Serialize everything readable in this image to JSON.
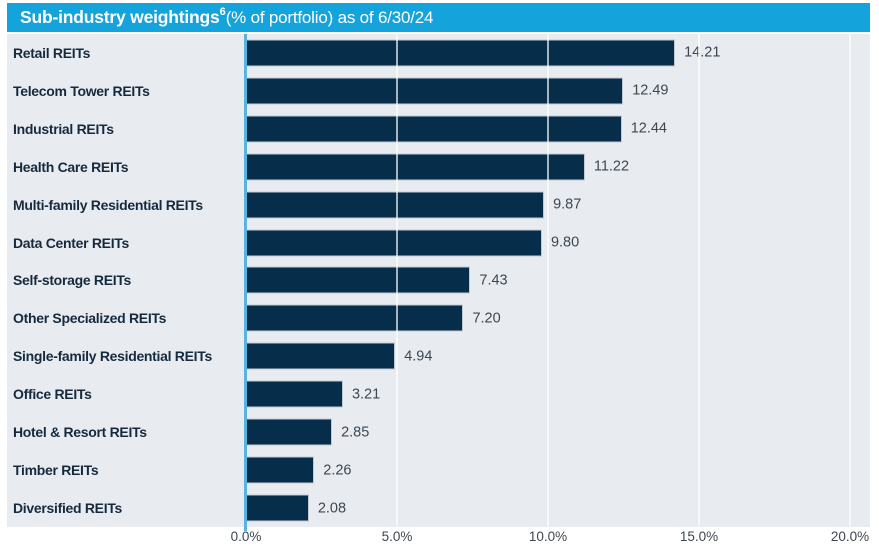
{
  "header": {
    "title": "Sub-industry weightings",
    "footnote_marker": "6",
    "subtitle": " (% of portfolio) as of 6/30/24"
  },
  "chart_data": {
    "type": "bar",
    "orientation": "horizontal",
    "title": "Sub-industry weightings (% of portfolio) as of 6/30/24",
    "categories": [
      "Retail REITs",
      "Telecom Tower REITs",
      "Industrial REITs",
      "Health Care REITs",
      "Multi-family Residential REITs",
      "Data Center REITs",
      "Self-storage REITs",
      "Other Specialized REITs",
      "Single-family Residential REITs",
      "Office REITs",
      "Hotel & Resort REITs",
      "Timber REITs",
      "Diversified REITs"
    ],
    "values": [
      14.21,
      12.49,
      12.44,
      11.22,
      9.87,
      9.8,
      7.43,
      7.2,
      4.94,
      3.21,
      2.85,
      2.26,
      2.08
    ],
    "value_labels": [
      "14.21",
      "12.49",
      "12.44",
      "11.22",
      "9.87",
      "9.80",
      "7.43",
      "7.20",
      "4.94",
      "3.21",
      "2.85",
      "2.26",
      "2.08"
    ],
    "xlabel": "",
    "ylabel": "",
    "xlim": [
      0,
      20
    ],
    "x_axis": {
      "ticks": [
        "0.0%",
        "5.0%",
        "10.0%",
        "15.0%",
        "20.0%"
      ],
      "tick_values": [
        0,
        5,
        10,
        15,
        20
      ]
    },
    "grid": true,
    "legend": false,
    "colors": {
      "header_bg": "#15a3dc",
      "header_text": "#ffffff",
      "plot_bg": "#e8ecf1",
      "bar": "#062d49",
      "category_text": "#162a3d",
      "value_text": "#3d4751",
      "axis_line": "#56b4de",
      "gridline": "#f4f6f8"
    }
  }
}
